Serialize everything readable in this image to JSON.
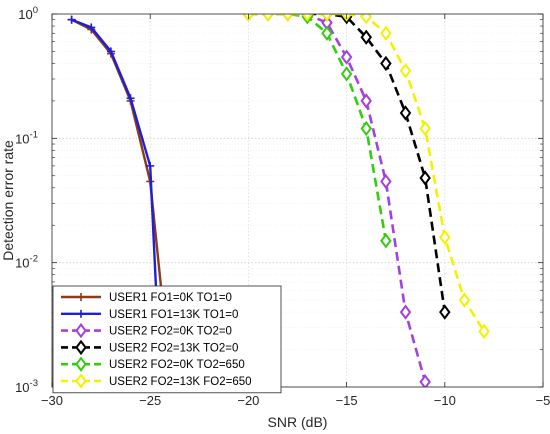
{
  "chart_data": {
    "type": "line",
    "title": "",
    "xlabel": "SNR (dB)",
    "ylabel": "Detection error rate",
    "xlim": [
      -30,
      -5
    ],
    "ylim": [
      0.001,
      1
    ],
    "yscale": "log",
    "grid": true,
    "legend_position": "bottom-left",
    "xticks": [
      -30,
      -25,
      -20,
      -15,
      -10,
      -5
    ],
    "xtick_labels": [
      "−30",
      "−25",
      "−20",
      "−15",
      "−10",
      "−5"
    ],
    "yticks": [
      0.001,
      0.01,
      0.1,
      1
    ],
    "ytick_labels": [
      {
        "base": "10",
        "exp": "-3"
      },
      {
        "base": "10",
        "exp": "-2"
      },
      {
        "base": "10",
        "exp": "-1"
      },
      {
        "base": "10",
        "exp": "0"
      }
    ],
    "series": [
      {
        "name": "USER1 FO1=0K TO1=0",
        "color": "#8B3A1A",
        "dash": "solid",
        "marker": "plus",
        "x": [
          -29,
          -28,
          -27,
          -26,
          -25,
          -24
        ],
        "y": [
          0.9,
          0.75,
          0.48,
          0.2,
          0.045,
          0.0013
        ]
      },
      {
        "name": "USER1 FO1=13K TO1=0",
        "color": "#1F1FD8",
        "dash": "solid",
        "marker": "plus",
        "x": [
          -29,
          -28,
          -27,
          -26,
          -25,
          -24.5
        ],
        "y": [
          0.9,
          0.78,
          0.5,
          0.21,
          0.06,
          0.0013
        ]
      },
      {
        "name": "USER2 FO2=0K TO2=0",
        "color": "#A340E0",
        "dash": "dashed",
        "marker": "diamond",
        "x": [
          -20,
          -19,
          -18,
          -17,
          -16,
          -15,
          -14,
          -13,
          -12,
          -11
        ],
        "y": [
          1,
          1,
          1,
          0.99,
          0.85,
          0.45,
          0.2,
          0.045,
          0.004,
          0.0011
        ]
      },
      {
        "name": "USER2 FO2=13K TO2=0",
        "color": "#000000",
        "dash": "dashed",
        "marker": "diamond",
        "x": [
          -17,
          -16,
          -15,
          -14,
          -13,
          -12,
          -11,
          -10
        ],
        "y": [
          1,
          1,
          0.95,
          0.65,
          0.4,
          0.16,
          0.048,
          0.004
        ]
      },
      {
        "name": "USER2 FO2=0K TO2=650",
        "color": "#33CC11",
        "dash": "dashed",
        "marker": "diamond",
        "x": [
          -20,
          -19,
          -18,
          -17,
          -16,
          -15,
          -14,
          -13
        ],
        "y": [
          1,
          1,
          1,
          0.95,
          0.7,
          0.33,
          0.12,
          0.015
        ]
      },
      {
        "name": "USER2 FO2=13K FO2=650",
        "color": "#F2F200",
        "dash": "dashed",
        "marker": "diamond",
        "x": [
          -20,
          -19,
          -18,
          -17,
          -16,
          -15,
          -14,
          -13,
          -12,
          -11,
          -10,
          -9,
          -8
        ],
        "y": [
          1,
          1,
          1,
          1,
          1,
          1,
          0.95,
          0.7,
          0.35,
          0.12,
          0.016,
          0.005,
          0.0028
        ]
      }
    ]
  }
}
